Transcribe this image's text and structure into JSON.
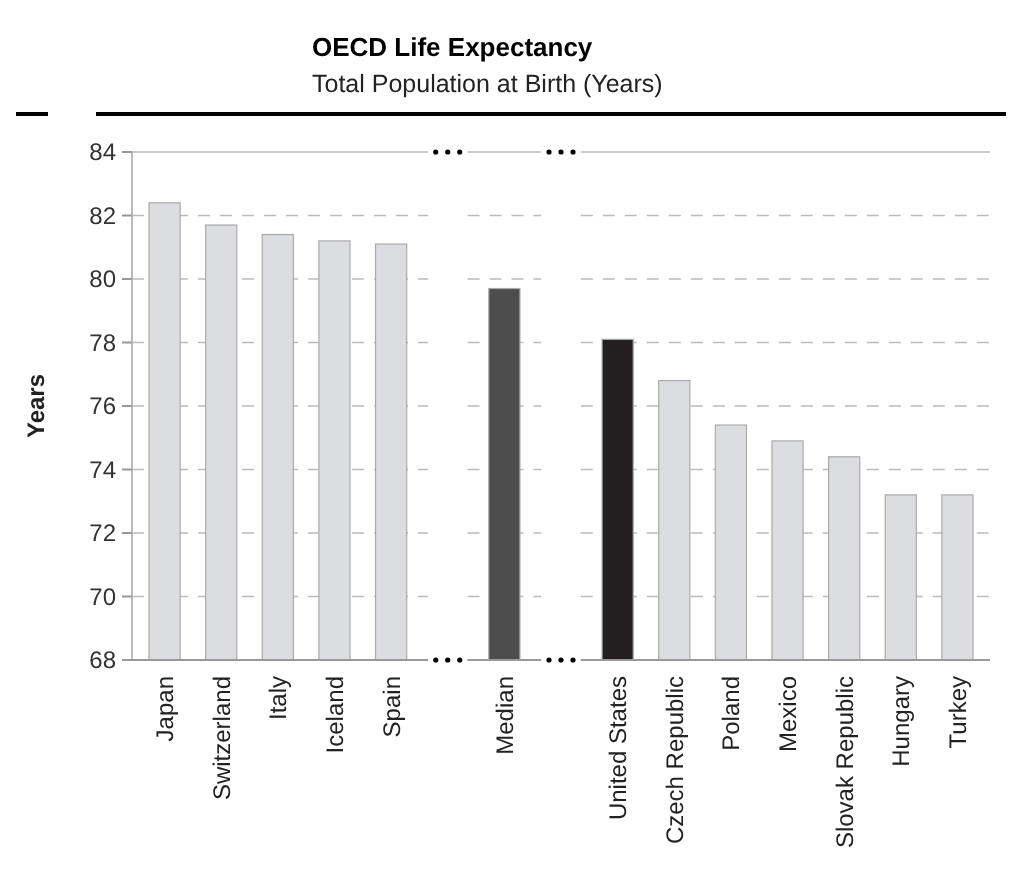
{
  "chart_data": {
    "type": "bar",
    "title": "OECD Life Expectancy",
    "subtitle": "Total Population at Birth (Years)",
    "ylabel": "Years",
    "categories": [
      "Japan",
      "Switzerland",
      "Italy",
      "Iceland",
      "Spain",
      null,
      "Median",
      null,
      "United States",
      "Czech Republic",
      "Poland",
      "Mexico",
      "Slovak Republic",
      "Hungary",
      "Turkey"
    ],
    "values": [
      82.4,
      81.7,
      81.4,
      81.2,
      81.1,
      null,
      79.7,
      null,
      78.1,
      76.8,
      75.4,
      74.9,
      74.4,
      73.2,
      73.2
    ],
    "colors": [
      "#dcdde0",
      "#dcdde0",
      "#dcdde0",
      "#dcdde0",
      "#dcdde0",
      null,
      "#4d4d4d",
      null,
      "#231f20",
      "#dcdde0",
      "#dcdde0",
      "#dcdde0",
      "#dcdde0",
      "#dcdde0",
      "#dcdde0"
    ],
    "ylim": [
      68,
      84
    ],
    "yticks": [
      68,
      70,
      72,
      74,
      76,
      78,
      80,
      82,
      84
    ],
    "grid": "y"
  }
}
